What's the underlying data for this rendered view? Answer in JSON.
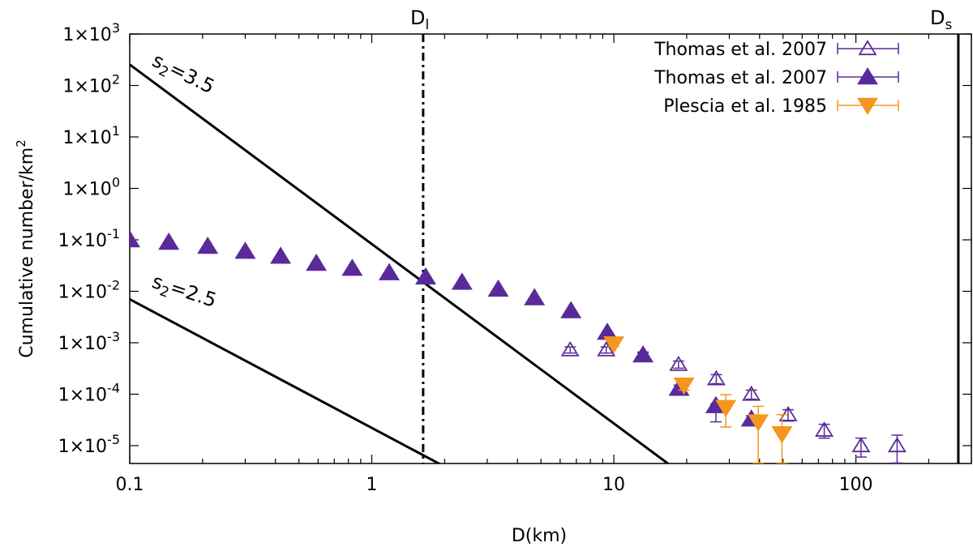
{
  "chart_data": {
    "type": "scatter",
    "title": "",
    "xlabel": "D(km)",
    "ylabel": "Cumulative number/km²",
    "xscale": "log",
    "yscale": "log",
    "xlim": [
      0.1,
      300
    ],
    "ylim": [
      4.5e-06,
      1000
    ],
    "x_ticks": [
      {
        "value": 0.1,
        "label": "0.1"
      },
      {
        "value": 1,
        "label": "1"
      },
      {
        "value": 10,
        "label": "10"
      },
      {
        "value": 100,
        "label": "100"
      }
    ],
    "y_ticks": [
      {
        "value": 1000.0,
        "label": "1×10",
        "exp": "3"
      },
      {
        "value": 100.0,
        "label": "1×10",
        "exp": "2"
      },
      {
        "value": 10.0,
        "label": "1×10",
        "exp": "1"
      },
      {
        "value": 1.0,
        "label": "1×10",
        "exp": "0"
      },
      {
        "value": 0.1,
        "label": "1×10",
        "exp": "-1"
      },
      {
        "value": 0.01,
        "label": "1×10",
        "exp": "-2"
      },
      {
        "value": 0.001,
        "label": "1×10",
        "exp": "-3"
      },
      {
        "value": 0.0001,
        "label": "1×10",
        "exp": "-4"
      },
      {
        "value": 1e-05,
        "label": "1×10",
        "exp": "-5"
      }
    ],
    "legend_position": "top-right",
    "series": [
      {
        "name": "Thomas et al. 2007",
        "marker": "triangle-up-open",
        "color": "#5b2a9a",
        "x": [
          6.6,
          9.3,
          13.2,
          18.5,
          26.5,
          37.0,
          52.5,
          74.0,
          105.0,
          148.0
        ],
        "y": [
          0.00073,
          0.00073,
          0.00058,
          0.00038,
          0.0002,
          0.0001,
          4e-05,
          2e-05,
          1e-05,
          1e-05
        ],
        "err_low": [
          0.00063,
          0.00063,
          0.0005,
          0.00032,
          0.00016,
          8e-05,
          3e-05,
          1.4e-05,
          6e-06,
          4.6e-06
        ],
        "err_high": [
          0.00083,
          0.00083,
          0.00066,
          0.00044,
          0.00024,
          0.00012,
          5e-05,
          2.6e-05,
          1.4e-05,
          1.6e-05
        ]
      },
      {
        "name": "Thomas et al. 2007",
        "marker": "triangle-up-filled",
        "color": "#5b2a9a",
        "x": [
          0.1,
          0.145,
          0.21,
          0.3,
          0.42,
          0.59,
          0.83,
          1.18,
          1.67,
          2.36,
          3.33,
          4.7,
          6.65,
          9.4,
          13.2,
          18.6,
          26.4,
          37.0
        ],
        "y": [
          0.1,
          0.09,
          0.075,
          0.06,
          0.048,
          0.035,
          0.028,
          0.023,
          0.019,
          0.015,
          0.011,
          0.0075,
          0.0042,
          0.0016,
          0.00058,
          0.00013,
          6e-05,
          3.3e-05
        ],
        "err_low": [
          0.1,
          0.09,
          0.075,
          0.06,
          0.048,
          0.035,
          0.028,
          0.023,
          0.019,
          0.015,
          0.011,
          0.0075,
          0.0042,
          0.0016,
          0.00053,
          0.00011,
          2.9e-05,
          2.8e-05
        ],
        "err_high": [
          0.1,
          0.09,
          0.075,
          0.06,
          0.048,
          0.035,
          0.028,
          0.023,
          0.019,
          0.015,
          0.011,
          0.0075,
          0.0042,
          0.0016,
          0.00064,
          0.00015,
          6.5e-05,
          3.8e-05
        ]
      },
      {
        "name": "Plescia et al. 1985",
        "marker": "triangle-down-filled",
        "color": "#f5961e",
        "x": [
          10.0,
          19.5,
          29.0,
          39.5,
          49.5
        ],
        "y": [
          0.00095,
          0.00015,
          5.5e-05,
          2.9e-05,
          1.7e-05
        ],
        "err_low": [
          0.00085,
          0.00012,
          2.3e-05,
          4.6e-06,
          4.6e-06
        ],
        "err_high": [
          0.00105,
          0.00018,
          9.8e-05,
          5.8e-05,
          4e-05
        ]
      }
    ],
    "reference_lines": [
      {
        "name": "s2=3.5",
        "slope": -3.5,
        "x": [
          0.1,
          67
        ],
        "y": [
          255,
          3.55e-08
        ],
        "label_main": "s",
        "label_sub": "2",
        "label_rest": "=3.5"
      },
      {
        "name": "s2=2.5",
        "slope": -2.5,
        "x": [
          0.1,
          10
        ],
        "y": [
          0.007,
          7e-08
        ],
        "label_main": "s",
        "label_sub": "2",
        "label_rest": "=2.5"
      }
    ],
    "vertical_lines": [
      {
        "name": "D_l",
        "x": 1.63,
        "style": "dash-dot",
        "label_main": "D",
        "label_sub": "l"
      },
      {
        "name": "D_s",
        "x": 265,
        "style": "solid",
        "label_main": "D",
        "label_sub": "s"
      }
    ]
  }
}
